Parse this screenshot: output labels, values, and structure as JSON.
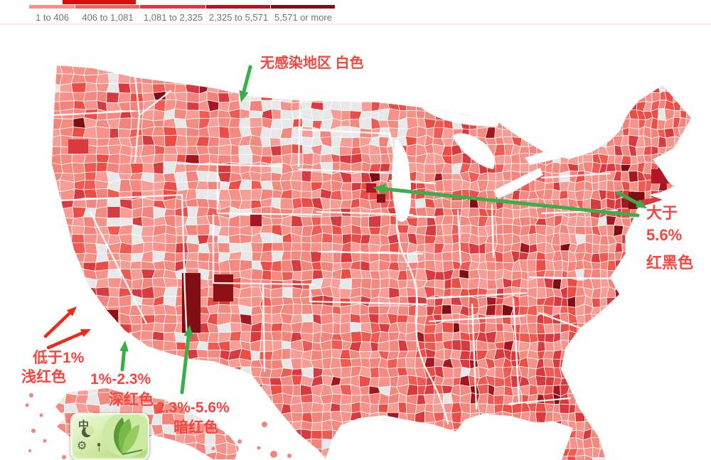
{
  "header": {
    "top_bar_color": "#d90d0d",
    "legend": {
      "bins": [
        {
          "label": "1 to 406",
          "color": "#f59187",
          "width": 64
        },
        {
          "label": "406 to 1,081",
          "color": "#f2605a",
          "width": 90
        },
        {
          "label": "1,081 to 2,325",
          "color": "#dc3a42",
          "width": 92
        },
        {
          "label": "2,325 to 5,571",
          "color": "#b01623",
          "width": 90
        },
        {
          "label": "5,571 or more",
          "color": "#7a1217",
          "width": 90
        }
      ],
      "label_color": "#737373"
    }
  },
  "map": {
    "palette": {
      "no_data": "#e8e8e8",
      "light": "#f4837b",
      "medium": "#ef5a52",
      "dark": "#d93a3f",
      "very_dark": "#a31820",
      "darkest": "#7e0e13",
      "water": "#ffffff",
      "border": "#ffffff"
    }
  },
  "annotations": {
    "text_color": "#f8463e",
    "arrow_green": "#3aae48",
    "arrow_red": "#ea2b1a",
    "no_infection": {
      "text": "无感染地区 白色"
    },
    "greater_than_5_6": {
      "lines": [
        "大于",
        "5.6%",
        "红黑色"
      ]
    },
    "below_1": {
      "lines": [
        "低于1%",
        "浅红色"
      ]
    },
    "from_1_to_2_3": {
      "lines": [
        "1%-2.3%",
        "深红色"
      ]
    },
    "from_2_3_to_5_6": {
      "lines": [
        "2.3%-5.6%",
        "暗红色"
      ]
    }
  },
  "chart_data": {
    "type": "choropleth",
    "region": "United States counties",
    "legend_bins": [
      {
        "range": "1 to 406",
        "color": "#f59187"
      },
      {
        "range": "406 to 1,081",
        "color": "#f2605a"
      },
      {
        "range": "1,081 to 2,325",
        "color": "#dc3a42"
      },
      {
        "range": "2,325 to 5,571",
        "color": "#b01623"
      },
      {
        "range": "5,571 or more",
        "color": "#7a1217"
      }
    ],
    "annotated_thresholds": [
      {
        "label": "无感染地区",
        "color_desc": "白色"
      },
      {
        "label": "低于1%",
        "color_desc": "浅红色"
      },
      {
        "label": "1%-2.3%",
        "color_desc": "深红色"
      },
      {
        "label": "2.3%-5.6%",
        "color_desc": "暗红色"
      },
      {
        "label": "大于5.6%",
        "color_desc": "红黑色"
      }
    ],
    "legend_position": "top-left"
  },
  "ime": {
    "mode_label": "中"
  }
}
